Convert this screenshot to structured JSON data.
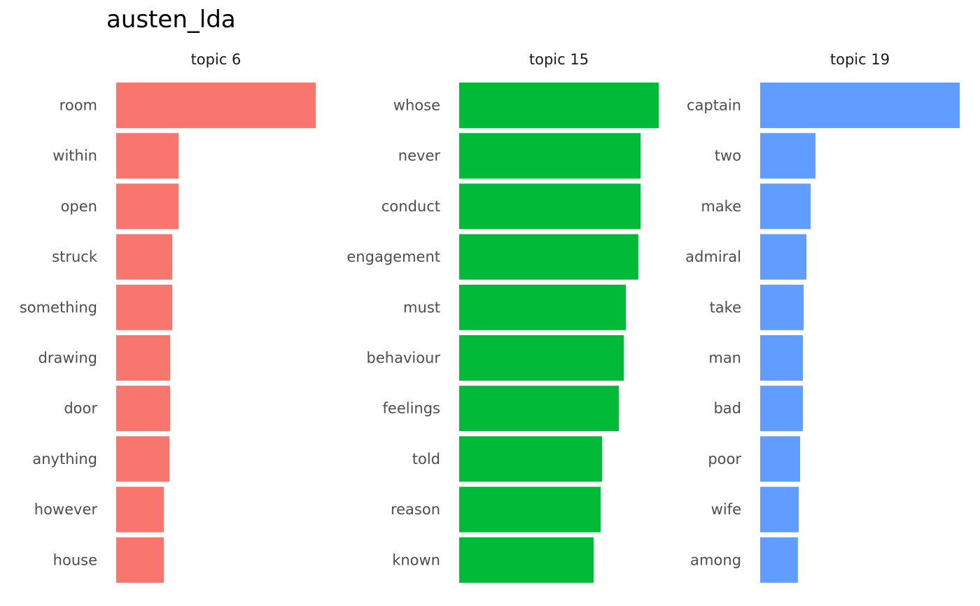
{
  "chart_data": {
    "type": "bar",
    "orientation": "horizontal",
    "title": "austen_lda",
    "xlabel": "",
    "ylabel": "",
    "grid": false,
    "legend": "none",
    "facet_scales": "free",
    "panels": [
      {
        "strip": "topic 6",
        "color": "#F8766D",
        "categories": [
          "room",
          "within",
          "open",
          "struck",
          "something",
          "drawing",
          "door",
          "anything",
          "however",
          "house"
        ],
        "values": [
          1.0,
          0.313,
          0.313,
          0.281,
          0.281,
          0.27,
          0.27,
          0.267,
          0.239,
          0.239
        ]
      },
      {
        "strip": "topic 15",
        "color": "#00BA38",
        "categories": [
          "whose",
          "never",
          "conduct",
          "engagement",
          "must",
          "behaviour",
          "feelings",
          "told",
          "reason",
          "known"
        ],
        "values": [
          1.0,
          0.909,
          0.909,
          0.898,
          0.835,
          0.825,
          0.8,
          0.716,
          0.709,
          0.674
        ]
      },
      {
        "strip": "topic 19",
        "color": "#619CFF",
        "categories": [
          "captain",
          "two",
          "make",
          "admiral",
          "take",
          "man",
          "bad",
          "poor",
          "wife",
          "among"
        ],
        "values": [
          1.0,
          0.277,
          0.253,
          0.232,
          0.218,
          0.214,
          0.214,
          0.2,
          0.193,
          0.189
        ]
      }
    ]
  }
}
